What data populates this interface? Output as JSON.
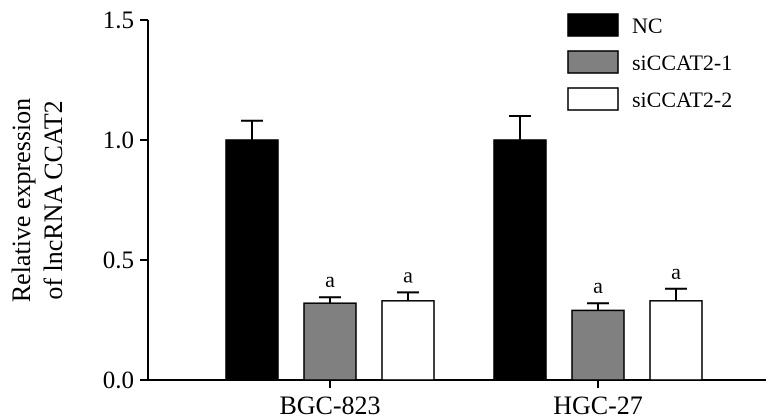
{
  "chart_data": {
    "type": "bar",
    "title": "",
    "xlabel": "",
    "ylabel": [
      "Relative expression",
      "of lncRNA CCAT2"
    ],
    "ylim": [
      0,
      1.5
    ],
    "yticks": [
      "0.0",
      "0.5",
      "1.0",
      "1.5"
    ],
    "categories": [
      "BGC-823",
      "HGC-27"
    ],
    "series": [
      {
        "name": "NC",
        "values": [
          1.0,
          1.0
        ],
        "errors": [
          0.08,
          0.1
        ],
        "annotations": [
          "",
          ""
        ],
        "fill": "#000000"
      },
      {
        "name": "siCCAT2-1",
        "values": [
          0.32,
          0.29
        ],
        "errors": [
          0.025,
          0.03
        ],
        "annotations": [
          "a",
          "a"
        ],
        "fill": "#808080"
      },
      {
        "name": "siCCAT2-2",
        "values": [
          0.33,
          0.33
        ],
        "errors": [
          0.035,
          0.05
        ],
        "annotations": [
          "a",
          "a"
        ],
        "fill": "#ffffff"
      }
    ],
    "grid": false,
    "legend_position": "top-right"
  }
}
